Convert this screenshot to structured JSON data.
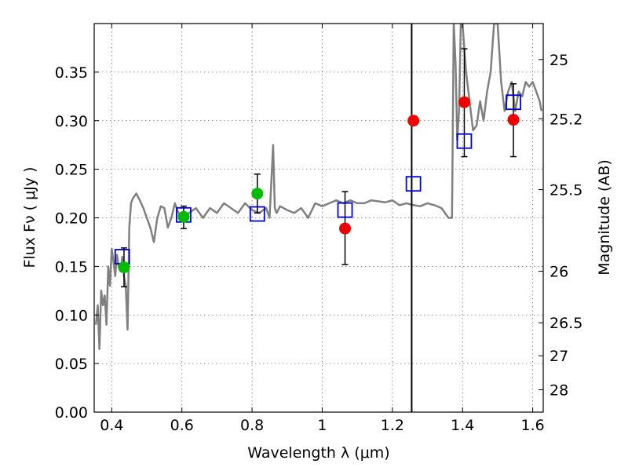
{
  "chart_data": {
    "type": "scatter",
    "xlabel": "Wavelength  λ (μm)",
    "ylabel": "Flux  Fν  ( μJy )",
    "ylabel_right": "Magnitude (AB)",
    "xlim": [
      0.35,
      1.63
    ],
    "ylim": [
      0,
      0.4
    ],
    "grid": true,
    "x_ticks": [
      0.4,
      0.6,
      0.8,
      1.0,
      1.2,
      1.4,
      1.6
    ],
    "x_tick_labels": [
      "0.4",
      "0.6",
      "0.8",
      "1",
      "1.2",
      "1.4",
      "1.6"
    ],
    "y_ticks": [
      0,
      0.05,
      0.1,
      0.15,
      0.2,
      0.25,
      0.3,
      0.35
    ],
    "y_tick_labels": [
      "0.00",
      "0.05",
      "0.10",
      "0.15",
      "0.20",
      "0.25",
      "0.30",
      "0.35"
    ],
    "right_ticks": [
      {
        "flux": 0.363,
        "label": "25"
      },
      {
        "flux": 0.302,
        "label": "25.2"
      },
      {
        "flux": 0.229,
        "label": "25.5"
      },
      {
        "flux": 0.145,
        "label": "26"
      },
      {
        "flux": 0.092,
        "label": "26.5"
      },
      {
        "flux": 0.058,
        "label": "27"
      },
      {
        "flux": 0.023,
        "label": "28"
      }
    ],
    "vline_x": 1.255,
    "model_spectrum": {
      "color": "#808080",
      "x": [
        0.355,
        0.36,
        0.365,
        0.37,
        0.375,
        0.38,
        0.385,
        0.39,
        0.395,
        0.4,
        0.405,
        0.41,
        0.415,
        0.42,
        0.425,
        0.43,
        0.435,
        0.44,
        0.445,
        0.45,
        0.455,
        0.46,
        0.47,
        0.48,
        0.49,
        0.5,
        0.51,
        0.52,
        0.53,
        0.54,
        0.55,
        0.56,
        0.57,
        0.58,
        0.59,
        0.6,
        0.62,
        0.64,
        0.66,
        0.68,
        0.7,
        0.72,
        0.74,
        0.76,
        0.78,
        0.8,
        0.82,
        0.84,
        0.85,
        0.86,
        0.865,
        0.87,
        0.88,
        0.9,
        0.92,
        0.94,
        0.96,
        0.98,
        1.0,
        1.02,
        1.04,
        1.06,
        1.08,
        1.1,
        1.12,
        1.14,
        1.16,
        1.18,
        1.2,
        1.22,
        1.24,
        1.26,
        1.28,
        1.3,
        1.32,
        1.34,
        1.36,
        1.37,
        1.375,
        1.38,
        1.385,
        1.39,
        1.395,
        1.4,
        1.41,
        1.42,
        1.43,
        1.44,
        1.45,
        1.46,
        1.47,
        1.48,
        1.49,
        1.5,
        1.51,
        1.52,
        1.53,
        1.54,
        1.55,
        1.56,
        1.57,
        1.58,
        1.59,
        1.6,
        1.61,
        1.62,
        1.625
      ],
      "y": [
        0.09,
        0.11,
        0.065,
        0.125,
        0.11,
        0.12,
        0.09,
        0.15,
        0.13,
        0.168,
        0.155,
        0.14,
        0.162,
        0.15,
        0.145,
        0.16,
        0.14,
        0.13,
        0.085,
        0.19,
        0.215,
        0.22,
        0.225,
        0.218,
        0.21,
        0.2,
        0.19,
        0.175,
        0.2,
        0.212,
        0.21,
        0.19,
        0.2,
        0.215,
        0.205,
        0.2,
        0.205,
        0.21,
        0.2,
        0.21,
        0.205,
        0.215,
        0.21,
        0.205,
        0.215,
        0.208,
        0.205,
        0.21,
        0.2,
        0.275,
        0.21,
        0.205,
        0.212,
        0.208,
        0.205,
        0.21,
        0.2,
        0.215,
        0.212,
        0.215,
        0.218,
        0.215,
        0.218,
        0.215,
        0.215,
        0.218,
        0.217,
        0.216,
        0.218,
        0.213,
        0.215,
        0.213,
        0.212,
        0.215,
        0.213,
        0.21,
        0.2,
        0.2,
        0.4,
        0.36,
        0.28,
        0.31,
        0.4,
        0.4,
        0.35,
        0.32,
        0.29,
        0.295,
        0.32,
        0.3,
        0.33,
        0.35,
        0.4,
        0.4,
        0.34,
        0.31,
        0.33,
        0.34,
        0.31,
        0.33,
        0.325,
        0.34,
        0.335,
        0.34,
        0.33,
        0.32,
        0.31
      ]
    },
    "series": [
      {
        "marker": "open-square",
        "color": "#0000cc",
        "x": [
          0.43,
          0.605,
          0.815,
          1.065,
          1.26,
          1.405,
          1.545
        ],
        "y": [
          0.16,
          0.203,
          0.204,
          0.208,
          0.235,
          0.279,
          0.319
        ]
      },
      {
        "marker": "circle",
        "color": "#00bb00",
        "x": [
          0.435,
          0.605,
          0.815
        ],
        "y": [
          0.149,
          0.201,
          0.225
        ],
        "err_low": [
          0.129,
          0.189,
          0.205
        ],
        "err_high": [
          0.169,
          0.212,
          0.245
        ]
      },
      {
        "marker": "circle",
        "color": "#ee0000",
        "x": [
          1.065,
          1.26,
          1.405,
          1.545
        ],
        "y": [
          0.189,
          0.3,
          0.319,
          0.301
        ],
        "err_low": [
          0.152,
          null,
          0.263,
          0.263
        ],
        "err_high": [
          0.227,
          null,
          0.374,
          0.338
        ]
      }
    ]
  }
}
